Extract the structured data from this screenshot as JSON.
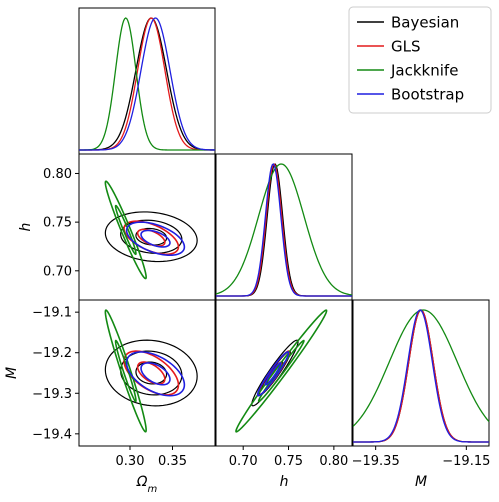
{
  "chart_data": {
    "type": "corner",
    "parameters": [
      {
        "id": "om",
        "label": "Ω",
        "sub": "m",
        "range": [
          0.24,
          0.4
        ],
        "ticks": [
          "0.30",
          "0.35"
        ],
        "tick_values": [
          0.3,
          0.35
        ]
      },
      {
        "id": "h",
        "label": "h",
        "range": [
          0.67,
          0.82
        ],
        "ticks": [
          "0.70",
          "0.75",
          "0.80"
        ],
        "tick_values": [
          0.7,
          0.75,
          0.8
        ]
      },
      {
        "id": "M",
        "label": "M",
        "range": [
          -19.43,
          -19.07
        ],
        "ticks": [
          "−19.4",
          "−19.3",
          "−19.2",
          "−19.1"
        ],
        "tick_values": [
          -19.4,
          -19.3,
          -19.2,
          -19.1
        ],
        "x_range": [
          -19.4,
          -19.1
        ],
        "x_ticks": [
          "−19.35",
          "−19.15"
        ],
        "x_tick_values": [
          -19.35,
          -19.15
        ]
      }
    ],
    "legend": {
      "position": "top-right",
      "entries": [
        {
          "name": "Bayesian",
          "color": "#000000"
        },
        {
          "name": "GLS",
          "color": "#e41a1c"
        },
        {
          "name": "Jackknife",
          "color": "#138a13"
        },
        {
          "name": "Bootstrap",
          "color": "#1f1fe0"
        }
      ]
    },
    "series": [
      {
        "name": "Bayesian",
        "color": "#000000",
        "mean": {
          "om": 0.325,
          "h": 0.735,
          "M": -19.25
        },
        "sd": {
          "om": 0.018,
          "h": 0.0085,
          "M": 0.027
        },
        "rho": {
          "om_h": -0.15,
          "om_M": -0.1,
          "h_M": 0.95
        },
        "contours": [
          1,
          2,
          3
        ]
      },
      {
        "name": "GLS",
        "color": "#e41a1c",
        "mean": {
          "om": 0.325,
          "h": 0.734,
          "M": -19.25
        },
        "sd": {
          "om": 0.016,
          "h": 0.0085,
          "M": 0.027
        },
        "rho": {
          "om_h": -0.55,
          "om_M": -0.55,
          "h_M": 0.95
        },
        "contours": [
          1,
          2
        ]
      },
      {
        "name": "Jackknife",
        "color": "#138a13",
        "mean": {
          "om": 0.295,
          "h": 0.742,
          "M": -19.245
        },
        "sd": {
          "om": 0.012,
          "h": 0.025,
          "M": 0.075
        },
        "rho": {
          "om_h": -0.97,
          "om_M": -0.97,
          "h_M": 0.99
        },
        "contours": [
          1,
          2
        ]
      },
      {
        "name": "Bootstrap",
        "color": "#1f1fe0",
        "mean": {
          "om": 0.33,
          "h": 0.733,
          "M": -19.252
        },
        "sd": {
          "om": 0.017,
          "h": 0.0085,
          "M": 0.027
        },
        "rho": {
          "om_h": -0.5,
          "om_M": -0.5,
          "h_M": 0.95
        },
        "contours": [
          1,
          2
        ]
      }
    ]
  }
}
